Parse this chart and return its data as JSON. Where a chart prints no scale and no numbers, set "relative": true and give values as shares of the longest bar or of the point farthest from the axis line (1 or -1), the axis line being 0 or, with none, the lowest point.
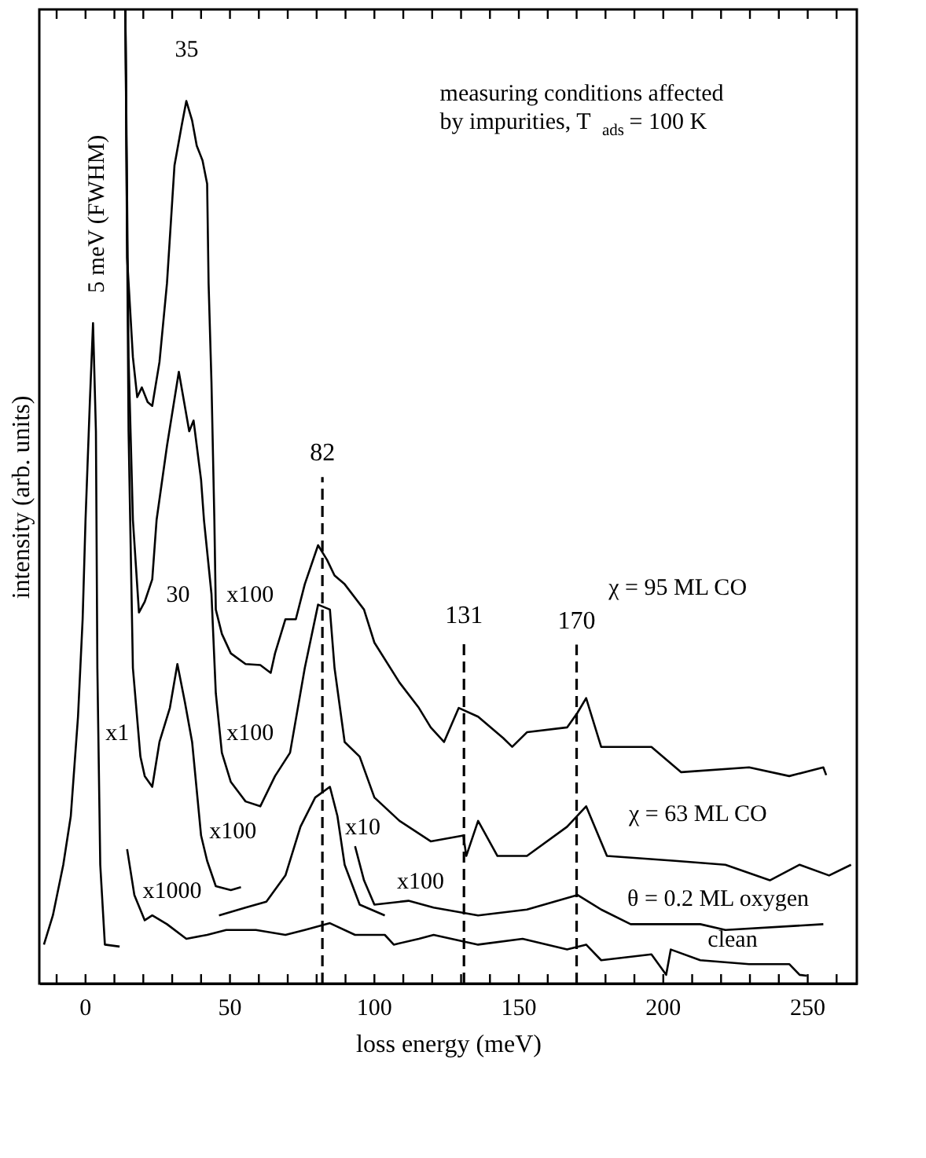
{
  "chart_data": {
    "type": "line",
    "relative": true,
    "xlabel": "loss energy (meV)",
    "ylabel": "intensity (arb. units)",
    "xlim": [
      -16,
      267
    ],
    "xticks": [
      {
        "value": -10,
        "label": null
      },
      0,
      {
        "value": 10,
        "label": null
      },
      {
        "value": 20,
        "label": null
      },
      {
        "value": 30,
        "label": null
      },
      {
        "value": 40,
        "label": null
      },
      50,
      {
        "value": 60,
        "label": null
      },
      {
        "value": 70,
        "label": null
      },
      {
        "value": 80,
        "label": null
      },
      {
        "value": 90,
        "label": null
      },
      100,
      {
        "value": 110,
        "label": null
      },
      {
        "value": 120,
        "label": null
      },
      {
        "value": 130,
        "label": null
      },
      {
        "value": 140,
        "label": null
      },
      150,
      {
        "value": 160,
        "label": null
      },
      {
        "value": 170,
        "label": null
      },
      {
        "value": 180,
        "label": null
      },
      {
        "value": 190,
        "label": null
      },
      200,
      {
        "value": 210,
        "label": null
      },
      {
        "value": 220,
        "label": null
      },
      {
        "value": 230,
        "label": null
      },
      {
        "value": 240,
        "label": null
      },
      250,
      {
        "value": 260,
        "label": null
      }
    ],
    "series": [
      {
        "color": "#000000",
        "x": [
          -14.4,
          -11.3,
          -7.7,
          -5.1,
          -2.6,
          -1.0,
          0,
          1.5,
          2.6,
          3.6,
          4.1,
          5.1,
          6.7,
          11.8
        ],
        "values": [
          0.04,
          0.07,
          0.122,
          0.172,
          0.274,
          0.374,
          0.476,
          0.597,
          0.678,
          0.567,
          0.324,
          0.122,
          0.04,
          0.038
        ]
      },
      {
        "color": "#000000",
        "x": [
          13.8,
          14.4,
          16.4,
          17.9,
          19.5,
          21.5,
          23.1,
          25.6,
          28.2,
          30.8,
          33.3,
          34.9,
          36.9,
          38.5,
          40.5,
          42.1,
          42.6,
          43.6,
          44.6,
          45.1,
          47.2,
          50.3,
          55.4,
          60.5,
          64.1,
          65.6,
          69.2,
          72.8,
          75.9,
          80.5,
          83.6,
          86.2,
          89.7,
          96.4,
          100.0,
          108.7,
          115.4,
          119.5,
          124.1,
          129.2,
          135.9,
          144.6,
          147.7,
          152.8,
          166.7,
          170.3,
          173.3,
          178.5,
          195.9,
          206.2,
          229.7,
          243.6,
          255.4,
          256.4
        ],
        "values": [
          1.0,
          0.745,
          0.643,
          0.602,
          0.612,
          0.597,
          0.593,
          0.638,
          0.719,
          0.84,
          0.881,
          0.906,
          0.886,
          0.86,
          0.845,
          0.821,
          0.719,
          0.617,
          0.476,
          0.384,
          0.359,
          0.339,
          0.328,
          0.327,
          0.319,
          0.339,
          0.374,
          0.374,
          0.41,
          0.45,
          0.435,
          0.419,
          0.41,
          0.384,
          0.35,
          0.309,
          0.283,
          0.263,
          0.248,
          0.283,
          0.274,
          0.252,
          0.243,
          0.258,
          0.263,
          0.278,
          0.293,
          0.243,
          0.243,
          0.217,
          0.222,
          0.213,
          0.222,
          0.214
        ]
      },
      {
        "color": "#000000",
        "x": [
          13.8,
          14.9,
          16.4,
          18.5,
          20.5,
          23.1,
          24.6,
          28.2,
          32.3,
          35.9,
          37.4,
          40.0,
          41.0,
          43.6,
          45.1,
          47.2,
          50.3,
          55.4,
          60.5,
          65.6,
          70.8,
          75.9,
          80.5,
          84.6,
          86.2,
          89.7,
          94.9,
          100.0,
          108.7,
          119.5,
          130.8,
          131.8,
          135.9,
          142.6,
          152.8,
          166.7,
          173.3,
          180.5,
          204.1,
          221.5,
          236.9,
          247.2,
          257.4,
          265.0
        ],
        "values": [
          1.0,
          0.643,
          0.476,
          0.381,
          0.392,
          0.415,
          0.476,
          0.552,
          0.628,
          0.567,
          0.578,
          0.517,
          0.476,
          0.4,
          0.298,
          0.237,
          0.207,
          0.187,
          0.182,
          0.213,
          0.237,
          0.324,
          0.389,
          0.384,
          0.324,
          0.248,
          0.233,
          0.191,
          0.167,
          0.146,
          0.152,
          0.131,
          0.167,
          0.131,
          0.131,
          0.161,
          0.182,
          0.131,
          0.126,
          0.122,
          0.106,
          0.122,
          0.111,
          0.122
        ]
      },
      {
        "color": "#000000",
        "x": [
          13.8,
          14.9,
          16.4,
          19.0,
          20.5,
          23.1,
          25.6,
          29.2,
          31.8,
          34.4,
          36.9,
          40.0,
          42.1,
          45.1,
          50.3,
          53.8
        ],
        "values": [
          1.0,
          0.567,
          0.324,
          0.233,
          0.213,
          0.202,
          0.248,
          0.283,
          0.328,
          0.289,
          0.248,
          0.152,
          0.126,
          0.1,
          0.096,
          0.099
        ]
      },
      {
        "color": "#000000",
        "x": [
          46.2,
          55.4,
          62.6,
          69.2,
          74.4,
          79.5,
          84.6,
          87.2,
          89.7,
          94.9,
          103.6
        ],
        "values": [
          0.07,
          0.078,
          0.084,
          0.111,
          0.161,
          0.191,
          0.202,
          0.172,
          0.122,
          0.081,
          0.07
        ]
      },
      {
        "color": "#000000",
        "x": [
          93.3,
          96.4,
          100.0,
          111.8,
          120.5,
          135.9,
          152.8,
          170.3,
          178.5,
          188.7,
          212.8,
          221.5,
          255.4
        ],
        "values": [
          0.141,
          0.106,
          0.081,
          0.085,
          0.078,
          0.07,
          0.076,
          0.091,
          0.076,
          0.061,
          0.061,
          0.055,
          0.061
        ]
      },
      {
        "color": "#000000",
        "x": [
          14.4,
          16.9,
          20.5,
          23.1,
          28.2,
          34.9,
          42.1,
          48.7,
          59.0,
          69.2,
          75.9,
          84.6,
          93.3,
          103.6,
          106.7,
          115.4,
          120.5,
          135.9,
          151.3,
          166.7,
          173.3,
          178.5,
          195.9,
          201.0,
          202.6,
          212.8,
          229.7,
          243.6,
          247.2,
          249.7
        ],
        "values": [
          0.138,
          0.091,
          0.065,
          0.07,
          0.061,
          0.046,
          0.05,
          0.055,
          0.055,
          0.05,
          0.055,
          0.062,
          0.05,
          0.05,
          0.04,
          0.046,
          0.05,
          0.04,
          0.046,
          0.035,
          0.04,
          0.024,
          0.03,
          0.009,
          0.035,
          0.024,
          0.02,
          0.02,
          0.009,
          0.008
        ]
      }
    ],
    "ref_lines": [
      {
        "axis": "x",
        "value": 82,
        "label": "82",
        "line_style": "dashed"
      },
      {
        "axis": "x",
        "value": 131,
        "label": "131",
        "line_style": "dashed"
      },
      {
        "axis": "x",
        "value": 170,
        "label": "170",
        "line_style": "dashed"
      }
    ],
    "annotations": [
      "5 meV (FWHM)",
      "35",
      "30",
      "x100",
      "x1",
      "x100",
      "x100",
      "x10",
      "x100",
      "x1000",
      "χ = 95 ML CO",
      "χ = 63 ML CO",
      "θ = 0.2 ML oxygen",
      "clean",
      "measuring conditions affected\nby impurities, T$_{ads}$ = 100 K"
    ]
  }
}
